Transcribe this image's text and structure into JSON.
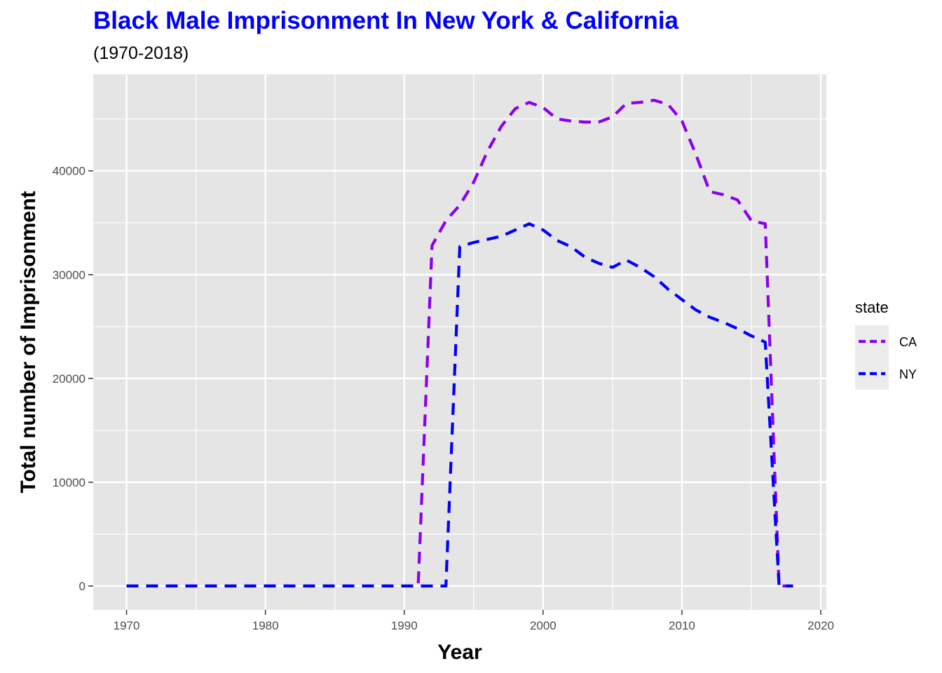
{
  "chart_data": {
    "type": "line",
    "title": "Black Male Imprisonment In New York & California",
    "subtitle": "(1970-2018)",
    "xlabel": "Year",
    "ylabel": "Total number of Imprisonment",
    "xlim": [
      1967.6,
      2020.4
    ],
    "ylim": [
      -2300,
      49300
    ],
    "x_ticks": [
      1970,
      1980,
      1990,
      2000,
      2010,
      2020
    ],
    "y_ticks": [
      0,
      10000,
      20000,
      30000,
      40000
    ],
    "grid": true,
    "legend": {
      "title": "state",
      "position": "right"
    },
    "series": [
      {
        "name": "CA",
        "color": "#8b00ee",
        "x": [
          1970,
          1971,
          1972,
          1973,
          1974,
          1975,
          1976,
          1977,
          1978,
          1979,
          1980,
          1981,
          1982,
          1983,
          1984,
          1985,
          1986,
          1987,
          1988,
          1989,
          1990,
          1991,
          1992,
          1993,
          1994,
          1995,
          1996,
          1997,
          1998,
          1999,
          2000,
          2001,
          2002,
          2003,
          2004,
          2005,
          2006,
          2007,
          2008,
          2009,
          2010,
          2011,
          2012,
          2013,
          2014,
          2015,
          2016,
          2017,
          2018
        ],
        "values": [
          0,
          0,
          0,
          0,
          0,
          0,
          0,
          0,
          0,
          0,
          0,
          0,
          0,
          0,
          0,
          0,
          0,
          0,
          0,
          0,
          0,
          0,
          32800,
          35200,
          36700,
          38900,
          41900,
          44300,
          46000,
          46600,
          46100,
          45000,
          44800,
          44700,
          44700,
          45200,
          46500,
          46600,
          46800,
          46400,
          44800,
          41600,
          38000,
          37700,
          37200,
          35200,
          34900,
          0,
          0
        ]
      },
      {
        "name": "NY",
        "color": "#0000ff",
        "x": [
          1970,
          1971,
          1972,
          1973,
          1974,
          1975,
          1976,
          1977,
          1978,
          1979,
          1980,
          1981,
          1982,
          1983,
          1984,
          1985,
          1986,
          1987,
          1988,
          1989,
          1990,
          1991,
          1992,
          1993,
          1994,
          1995,
          1996,
          1997,
          1998,
          1999,
          2000,
          2001,
          2002,
          2003,
          2004,
          2005,
          2006,
          2007,
          2008,
          2009,
          2010,
          2011,
          2012,
          2013,
          2014,
          2015,
          2016,
          2017,
          2018
        ],
        "values": [
          0,
          0,
          0,
          0,
          0,
          0,
          0,
          0,
          0,
          0,
          0,
          0,
          0,
          0,
          0,
          0,
          0,
          0,
          0,
          0,
          0,
          0,
          0,
          0,
          32700,
          33100,
          33400,
          33700,
          34300,
          34900,
          34300,
          33300,
          32700,
          31700,
          31100,
          30700,
          31400,
          30700,
          29800,
          28600,
          27600,
          26600,
          25900,
          25400,
          24800,
          24100,
          23500,
          0,
          0
        ]
      }
    ]
  }
}
